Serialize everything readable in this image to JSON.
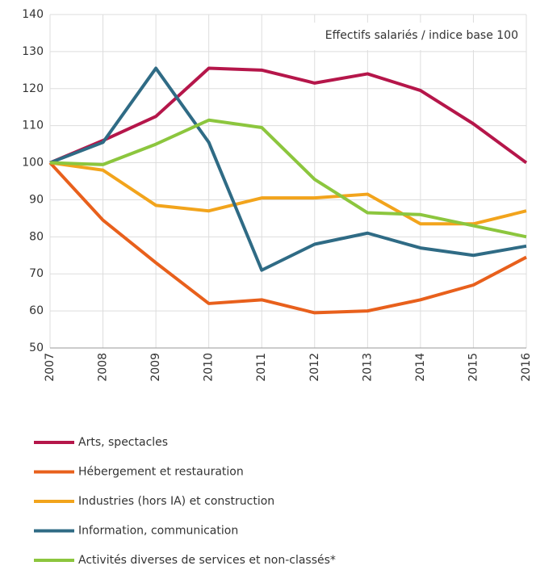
{
  "chart_data": {
    "type": "line",
    "annotation": "Effectifs salariés / indice base 100",
    "categories": [
      "2007",
      "2008",
      "2009",
      "2010",
      "2011",
      "2012",
      "2013",
      "2014",
      "2015",
      "2016"
    ],
    "series": [
      {
        "name": "Arts, spectacles",
        "color": "#b5164a",
        "values": [
          100,
          106,
          112.5,
          125.5,
          125,
          121.5,
          124,
          119.5,
          110.5,
          100
        ]
      },
      {
        "name": "Hébergement et restauration",
        "color": "#e8601c",
        "values": [
          100,
          84.5,
          73,
          62,
          63,
          59.5,
          60,
          63,
          67,
          74.5
        ]
      },
      {
        "name": "Industries (hors IA) et construction",
        "color": "#f2a41c",
        "values": [
          100,
          98,
          88.5,
          87,
          90.5,
          90.5,
          91.5,
          83.5,
          83.5,
          87
        ]
      },
      {
        "name": "Information, communication",
        "color": "#2f6b85",
        "values": [
          100,
          105.5,
          125.5,
          105.5,
          71,
          78,
          81,
          77,
          75,
          77.5
        ]
      },
      {
        "name": "Activités diverses de services et non-classés*",
        "color": "#8cc63e",
        "values": [
          100,
          99.5,
          105,
          111.5,
          109.5,
          95.5,
          86.5,
          86,
          83,
          80
        ]
      }
    ],
    "ylim": [
      50,
      140
    ],
    "yticks": [
      50,
      60,
      70,
      80,
      90,
      100,
      110,
      120,
      130,
      140
    ],
    "grid": true
  }
}
